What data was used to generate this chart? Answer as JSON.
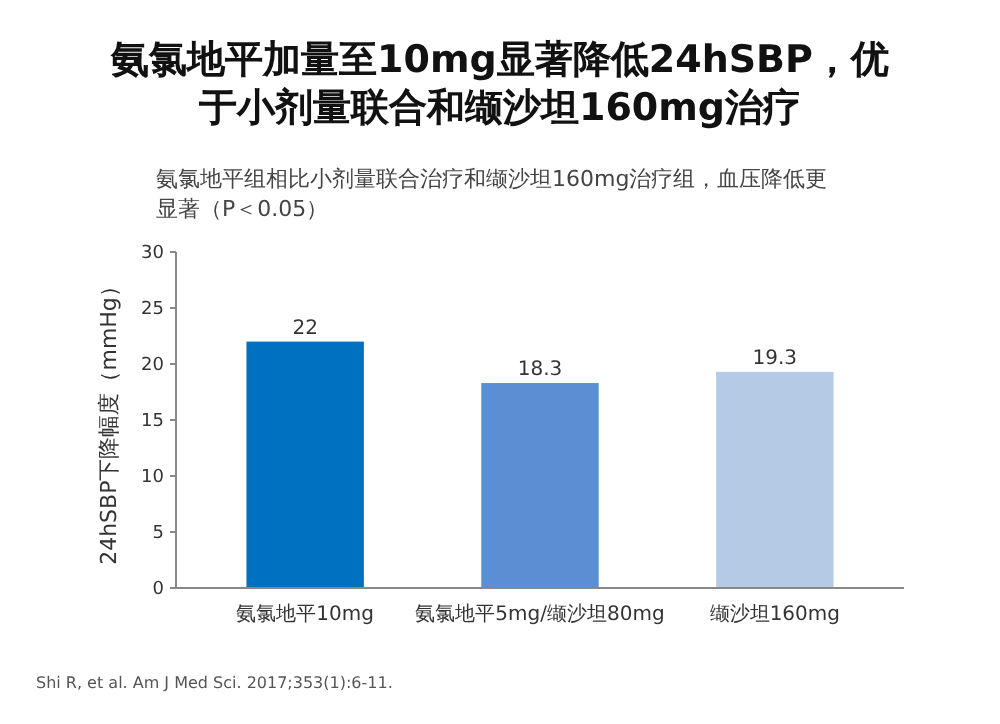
{
  "chart_data": {
    "type": "bar",
    "title": "氨氯地平加量至10mg显著降低24hSBP，优于小剂量联合和缬沙坦160mg治疗",
    "subtitle": "氨氯地平组相比小剂量联合治疗和缬沙坦160mg治疗组，血压降低更显著（P＜0.05）",
    "ylabel": "24hSBP下降幅度（mmHg）",
    "categories": [
      "氨氯地平10mg",
      "氨氯地平5mg/缬沙坦80mg",
      "缬沙坦160mg"
    ],
    "values": [
      22.0,
      18.3,
      19.3
    ],
    "colors": [
      "#0070c0",
      "#5b8fd4",
      "#b4cbe6"
    ],
    "ylim": [
      0,
      30
    ],
    "yticks": [
      0,
      5,
      10,
      15,
      20,
      25,
      30
    ],
    "grid": false,
    "data_labels": true,
    "annotations": [
      "Shi R, et al. Am J Med Sci. 2017;353(1):6-11."
    ]
  }
}
